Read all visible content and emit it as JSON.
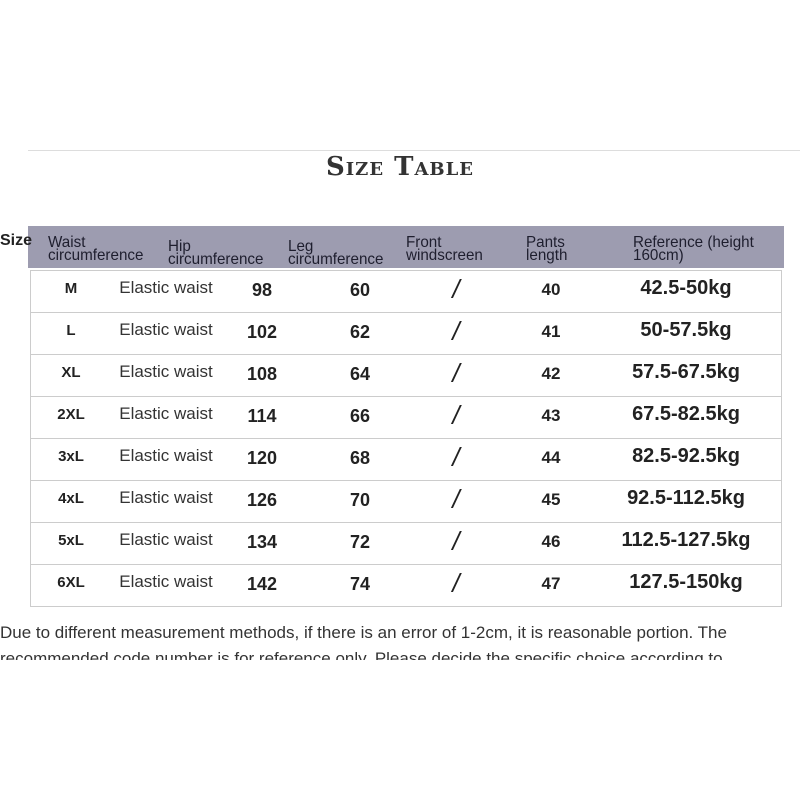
{
  "title": "Size Table",
  "header": {
    "size": "Size",
    "waist": "Waist circumference",
    "hip": "Hip circumference",
    "leg": "Leg circumference",
    "front": "Front windscreen",
    "pants": "Pants length",
    "reference": "Reference (height 160cm)"
  },
  "header_color": "#9d9cb0",
  "rows": [
    {
      "size": "M",
      "waist": "Elastic waist",
      "hip": "98",
      "leg": "60",
      "front": "/",
      "pants": "40",
      "ref": "42.5-50kg"
    },
    {
      "size": "L",
      "waist": "Elastic waist",
      "hip": "102",
      "leg": "62",
      "front": "/",
      "pants": "41",
      "ref": "50-57.5kg"
    },
    {
      "size": "XL",
      "waist": "Elastic waist",
      "hip": "108",
      "leg": "64",
      "front": "/",
      "pants": "42",
      "ref": "57.5-67.5kg"
    },
    {
      "size": "2XL",
      "waist": "Elastic waist",
      "hip": "114",
      "leg": "66",
      "front": "/",
      "pants": "43",
      "ref": "67.5-82.5kg"
    },
    {
      "size": "3xL",
      "waist": "Elastic waist",
      "hip": "120",
      "leg": "68",
      "front": "/",
      "pants": "44",
      "ref": "82.5-92.5kg"
    },
    {
      "size": "4xL",
      "waist": "Elastic waist",
      "hip": "126",
      "leg": "70",
      "front": "/",
      "pants": "45",
      "ref": "92.5-112.5kg"
    },
    {
      "size": "5xL",
      "waist": "Elastic waist",
      "hip": "134",
      "leg": "72",
      "front": "/",
      "pants": "46",
      "ref": "112.5-127.5kg"
    },
    {
      "size": "6XL",
      "waist": "Elastic waist",
      "hip": "142",
      "leg": "74",
      "front": "/",
      "pants": "47",
      "ref": "127.5-150kg"
    }
  ],
  "note": "Due to different measurement methods, if there is an error of 1-2cm, it is reasonable portion. The recommended code number is for reference only. Please decide the specific choice according to"
}
